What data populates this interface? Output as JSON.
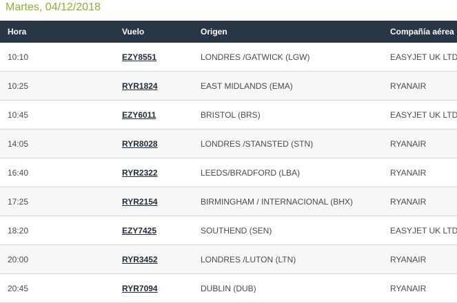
{
  "date_heading": "Martes, 04/12/2018",
  "columns": {
    "time": "Hora",
    "flight": "Vuelo",
    "origin": "Origen",
    "airline": "Compañía aérea"
  },
  "rows": [
    {
      "time": "10:10",
      "flight": "EZY8551",
      "origin": "LONDRES /GATWICK (LGW)",
      "airline": "EASYJET UK LTD"
    },
    {
      "time": "10:25",
      "flight": "RYR1824",
      "origin": "EAST MIDLANDS (EMA)",
      "airline": "RYANAIR"
    },
    {
      "time": "10:45",
      "flight": "EZY6011",
      "origin": "BRISTOL (BRS)",
      "airline": "EASYJET UK LTD"
    },
    {
      "time": "14:05",
      "flight": "RYR8028",
      "origin": "LONDRES /STANSTED (STN)",
      "airline": "RYANAIR"
    },
    {
      "time": "16:40",
      "flight": "RYR2322",
      "origin": "LEEDS/BRADFORD (LBA)",
      "airline": "RYANAIR"
    },
    {
      "time": "17:25",
      "flight": "RYR2154",
      "origin": "BIRMINGHAM / INTERNACIONAL (BHX)",
      "airline": "RYANAIR"
    },
    {
      "time": "18:20",
      "flight": "EZY7425",
      "origin": "SOUTHEND (SEN)",
      "airline": "EASYJET UK LTD"
    },
    {
      "time": "20:00",
      "flight": "RYR3452",
      "origin": "LONDRES /LUTON (LTN)",
      "airline": "RYANAIR"
    },
    {
      "time": "20:45",
      "flight": "RYR7094",
      "origin": "DUBLIN (DUB)",
      "airline": "RYANAIR"
    }
  ]
}
